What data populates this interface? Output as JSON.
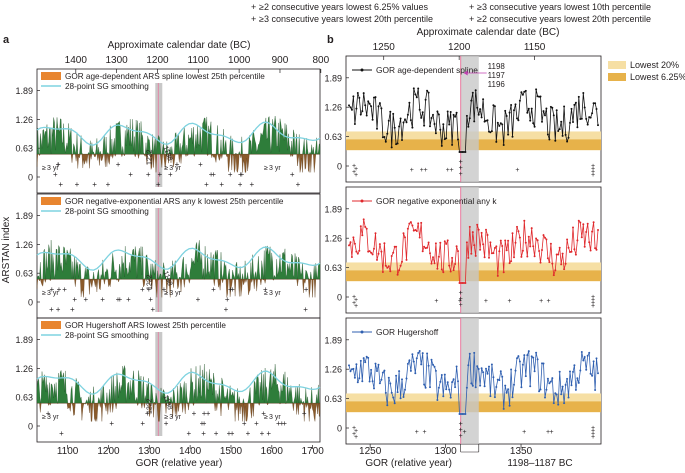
{
  "legend_top": [
    {
      "symbol": "+",
      "label": "≥2 consecutive years lowest 6.25% values",
      "color": "#b9b0b0"
    },
    {
      "symbol": "+",
      "label": "≥3 consecutive years lowest 10th percentile",
      "color": "#e8a27c"
    },
    {
      "symbol": "+",
      "label": "≥3 consecutive years lowest 20th percentile",
      "color": "#8b2b2b"
    },
    {
      "symbol": "+",
      "label": "≥2 consecutive years lowest 20th percentile",
      "color": "#f1c2a2"
    }
  ],
  "colors": {
    "green_fill": "#2e7d3a",
    "brown_fill": "#8a5a2b",
    "sg_line": "#7fd3e0",
    "black_series": "#111111",
    "red_series": "#e0282c",
    "blue_series": "#2f5fb0",
    "orange_swatch": "#e8852f",
    "band_light": "#f6dfa4",
    "band_dark": "#e7b24a",
    "gray_bar": "#c8c8c8",
    "magenta": "#c040b0",
    "pink_line": "#e87aa0"
  },
  "chart_data": [
    {
      "panel": "a",
      "type": "area",
      "top_axis_title": "Approximate calendar date (BC)",
      "top_ticks": [
        "1400",
        "1300",
        "1200",
        "1100",
        "1000",
        "900",
        "800"
      ],
      "bottom_axis_title": "GOR (relative year)",
      "bottom_ticks": [
        "1100",
        "1200",
        "1300",
        "1400",
        "1500",
        "1600",
        "1700"
      ],
      "xlim": [
        1025,
        1718
      ],
      "ylabel": "ARSTAN index",
      "yticks": [
        "1.89",
        "1.26",
        "0.63",
        "0"
      ],
      "ylim": [
        0,
        2.1
      ],
      "highlight_year": 1322,
      "subpanels": [
        {
          "legend_swatch": "GOR age-dependent ARS spline lowest 25th percentile",
          "legend_line": "28-point SG smoothing",
          "annot_rot1": "1222",
          "annot_rot2": "1198",
          "annot_3yr": [
            "3 yr",
            "3 yr",
            "3 yr"
          ]
        },
        {
          "legend_swatch": "GOR negative-exponential ARS any k lowest 25th percentile",
          "legend_line": "28-point SG smoothing",
          "annot_rot1": "1222",
          "annot_rot2": "1198",
          "annot_3yr": [
            "3 yr",
            "3 yr",
            "3 yr"
          ]
        },
        {
          "legend_swatch": "GOR Hugershoff ARS lowest 25th percentile",
          "legend_line": "28-point SG smoothing",
          "annot_rot1": "1222",
          "annot_rot2": "1198",
          "annot_3yr": [
            "3 yr",
            "3 yr",
            "3 yr"
          ]
        }
      ]
    },
    {
      "panel": "b",
      "type": "line",
      "top_axis_title": "Approximate calendar date (BC)",
      "top_ticks": [
        "1250",
        "1200",
        "1150"
      ],
      "bottom_axis_title": "GOR (relative year)",
      "bottom_ticks": [
        "1250",
        "1300",
        "1350"
      ],
      "xlim": [
        1234,
        1403
      ],
      "yticks": [
        "1.89",
        "1.26",
        "0.63",
        "0"
      ],
      "ylim": [
        0,
        2.1
      ],
      "legend": [
        "Lowest 20%",
        "Lowest 6.25%"
      ],
      "band_light": [
        0.34,
        0.74
      ],
      "band_dark": [
        0.34,
        0.57
      ],
      "highlight_year": 1310,
      "gray_range": [
        1310,
        1322
      ],
      "annot_years": [
        "1198",
        "1197",
        "1196"
      ],
      "annot_range": "1198–1187 BC",
      "series": [
        {
          "name": "GOR age-dependent spline",
          "color": "#111111"
        },
        {
          "name": "GOR negative exponential any k",
          "color": "#e0282c"
        },
        {
          "name": "GOR Hugershoff",
          "color": "#2f5fb0"
        }
      ]
    }
  ],
  "labels": {
    "panel_a": "a",
    "panel_b": "b"
  }
}
